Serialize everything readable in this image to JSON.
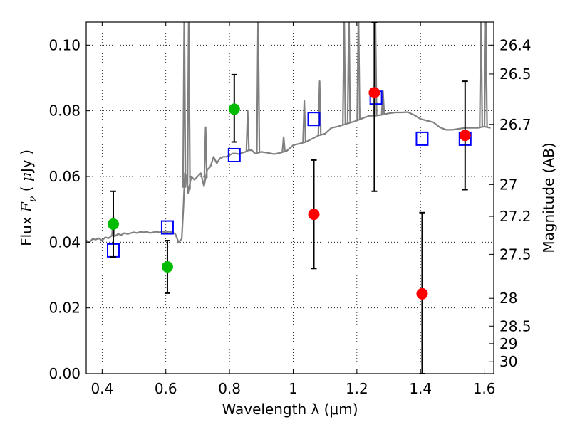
{
  "chart_data": {
    "type": "scatter",
    "xlabel": "Wavelength  λ (μm)",
    "ylabel": "Flux  F_ν  ( μJy )",
    "ylabel_parts": [
      "Flux  ",
      "F",
      "ν",
      "  ( ",
      "μ",
      "Jy )"
    ],
    "y2label": "Magnitude (AB)",
    "xlim": [
      0.35,
      1.63
    ],
    "ylim": [
      0.0,
      0.107
    ],
    "grid": true,
    "x_ticks": [
      {
        "value": 0.4,
        "label": "0.4"
      },
      {
        "value": 0.6,
        "label": "0.6"
      },
      {
        "value": 0.8,
        "label": "0.8"
      },
      {
        "value": 1.0,
        "label": "1"
      },
      {
        "value": 1.2,
        "label": "1.2"
      },
      {
        "value": 1.4,
        "label": "1.4"
      },
      {
        "value": 1.6,
        "label": "1.6"
      }
    ],
    "y_ticks": [
      {
        "value": 0.0,
        "label": "0.00"
      },
      {
        "value": 0.02,
        "label": "0.02"
      },
      {
        "value": 0.04,
        "label": "0.04"
      },
      {
        "value": 0.06,
        "label": "0.06"
      },
      {
        "value": 0.08,
        "label": "0.08"
      },
      {
        "value": 0.1,
        "label": "0.10"
      }
    ],
    "y2_ticks": [
      {
        "value": 26.4,
        "label": "26.4"
      },
      {
        "value": 26.5,
        "label": "26.5"
      },
      {
        "value": 26.7,
        "label": "26.7"
      },
      {
        "value": 27.0,
        "label": "27"
      },
      {
        "value": 27.2,
        "label": "27.2"
      },
      {
        "value": 27.5,
        "label": "27.5"
      },
      {
        "value": 28.0,
        "label": "28"
      },
      {
        "value": 28.5,
        "label": "28.5"
      },
      {
        "value": 29.0,
        "label": "29"
      },
      {
        "value": 30.0,
        "label": "30"
      }
    ],
    "series": [
      {
        "kind": "line",
        "color": "#808080",
        "x": [
          0.35,
          0.36,
          0.37,
          0.38,
          0.39,
          0.4,
          0.41,
          0.42,
          0.43,
          0.44,
          0.45,
          0.46,
          0.47,
          0.48,
          0.49,
          0.5,
          0.51,
          0.52,
          0.53,
          0.54,
          0.55,
          0.56,
          0.57,
          0.58,
          0.59,
          0.6,
          0.61,
          0.62,
          0.63,
          0.64,
          0.65,
          0.655,
          0.66,
          0.665,
          0.67,
          0.68,
          0.69,
          0.7,
          0.71,
          0.72,
          0.73,
          0.74,
          0.75,
          0.76,
          0.77,
          0.78,
          0.79,
          0.8,
          0.81,
          0.82,
          0.83,
          0.84,
          0.85,
          0.86,
          0.87,
          0.88,
          0.89,
          0.9,
          0.92,
          0.94,
          0.96,
          0.98,
          1.0,
          1.02,
          1.04,
          1.06,
          1.08,
          1.1,
          1.12,
          1.14,
          1.16,
          1.18,
          1.2,
          1.22,
          1.24,
          1.26,
          1.28,
          1.3,
          1.32,
          1.34,
          1.36,
          1.38,
          1.4,
          1.42,
          1.44,
          1.46,
          1.48,
          1.5,
          1.52,
          1.54,
          1.56,
          1.58,
          1.6,
          1.62
        ],
        "y": [
          0.0405,
          0.04,
          0.041,
          0.0408,
          0.0412,
          0.0405,
          0.0415,
          0.0412,
          0.042,
          0.0418,
          0.0425,
          0.0422,
          0.0428,
          0.0425,
          0.0428,
          0.043,
          0.0428,
          0.0432,
          0.043,
          0.0432,
          0.0428,
          0.043,
          0.0432,
          0.043,
          0.0432,
          0.043,
          0.0432,
          0.043,
          0.0425,
          0.04,
          0.041,
          0.05,
          0.061,
          0.06,
          0.055,
          0.06,
          0.059,
          0.06,
          0.061,
          0.057,
          0.062,
          0.063,
          0.066,
          0.064,
          0.0655,
          0.066,
          0.066,
          0.0665,
          0.067,
          0.067,
          0.0668,
          0.0672,
          0.0675,
          0.068,
          0.068,
          0.067,
          0.0672,
          0.0675,
          0.0672,
          0.0668,
          0.0672,
          0.0678,
          0.0695,
          0.07,
          0.0705,
          0.0715,
          0.0725,
          0.073,
          0.0748,
          0.0752,
          0.0758,
          0.0764,
          0.077,
          0.0778,
          0.0785,
          0.0785,
          0.0788,
          0.0792,
          0.0795,
          0.0795,
          0.0796,
          0.0787,
          0.0775,
          0.077,
          0.0765,
          0.075,
          0.0742,
          0.0742,
          0.0745,
          0.0748,
          0.0748,
          0.0748,
          0.0752,
          0.0748
        ]
      },
      {
        "kind": "line-spikes",
        "color": "#808080",
        "peaks": [
          {
            "x": 0.435,
            "y": 0.048
          },
          {
            "x": 0.658,
            "y": 0.11
          },
          {
            "x": 0.672,
            "y": 0.11
          },
          {
            "x": 0.725,
            "y": 0.075
          },
          {
            "x": 0.857,
            "y": 0.08
          },
          {
            "x": 0.89,
            "y": 0.11
          },
          {
            "x": 0.97,
            "y": 0.072
          },
          {
            "x": 1.035,
            "y": 0.083
          },
          {
            "x": 1.083,
            "y": 0.089
          },
          {
            "x": 1.16,
            "y": 0.11
          },
          {
            "x": 1.175,
            "y": 0.11
          },
          {
            "x": 1.205,
            "y": 0.11
          },
          {
            "x": 1.258,
            "y": 0.11
          },
          {
            "x": 1.282,
            "y": 0.086
          },
          {
            "x": 1.59,
            "y": 0.11
          },
          {
            "x": 1.605,
            "y": 0.11
          }
        ]
      },
      {
        "kind": "scatter",
        "marker": "open-square",
        "color": "#0000ff",
        "x": [
          0.435,
          0.605,
          0.815,
          1.065,
          1.26,
          1.405,
          1.54
        ],
        "y": [
          0.0375,
          0.0445,
          0.0665,
          0.0775,
          0.084,
          0.0715,
          0.0715
        ]
      },
      {
        "kind": "scatter",
        "marker": "filled-circle",
        "color": "#00bb00",
        "x": [
          0.435,
          0.605,
          0.815
        ],
        "y": [
          0.0455,
          0.0325,
          0.0805
        ],
        "yerr_low": [
          0.0355,
          0.0245,
          0.0705
        ],
        "yerr_high": [
          0.0555,
          0.0405,
          0.091
        ]
      },
      {
        "kind": "scatter",
        "marker": "filled-circle",
        "color": "#ff0000",
        "x": [
          1.065,
          1.255,
          1.405,
          1.54
        ],
        "y": [
          0.0485,
          0.0855,
          0.0243,
          0.0725
        ],
        "yerr_low": [
          0.032,
          0.0555,
          0.0,
          0.056
        ],
        "yerr_high": [
          0.065,
          0.107,
          0.049,
          0.089
        ]
      }
    ]
  }
}
